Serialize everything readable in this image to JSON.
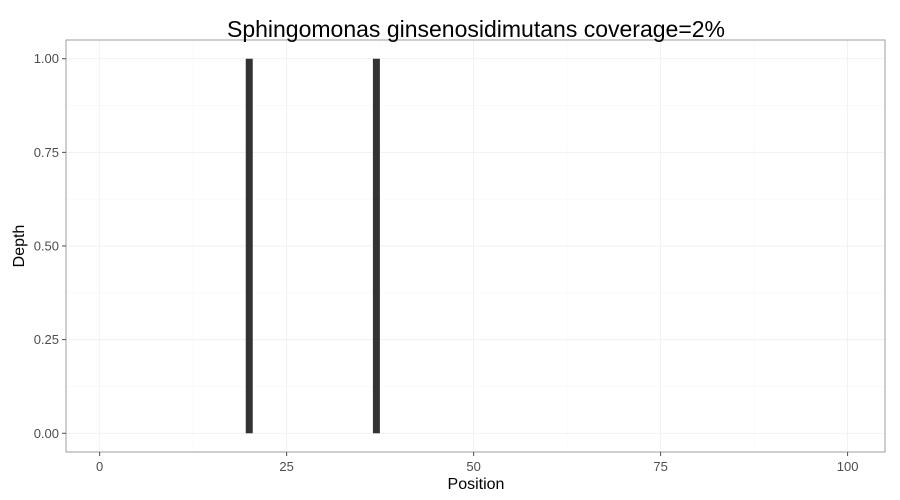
{
  "chart_data": {
    "type": "bar",
    "title": "Sphingomonas ginsenosidimutans coverage=2%",
    "xlabel": "Position",
    "ylabel": "Depth",
    "xlim": [
      -4.5,
      105
    ],
    "ylim": [
      -0.05,
      1.05
    ],
    "x_ticks": [
      0,
      25,
      50,
      75,
      100
    ],
    "x_tick_labels": [
      "0",
      "25",
      "50",
      "75",
      "100"
    ],
    "y_ticks": [
      0,
      0.25,
      0.5,
      0.75,
      1
    ],
    "y_tick_labels": [
      "0.00",
      "0.25",
      "0.50",
      "0.75",
      "1.00"
    ],
    "grid": true,
    "series": [
      {
        "x": [
          20,
          37
        ],
        "y": [
          1,
          1
        ],
        "color": "#333333"
      }
    ]
  }
}
